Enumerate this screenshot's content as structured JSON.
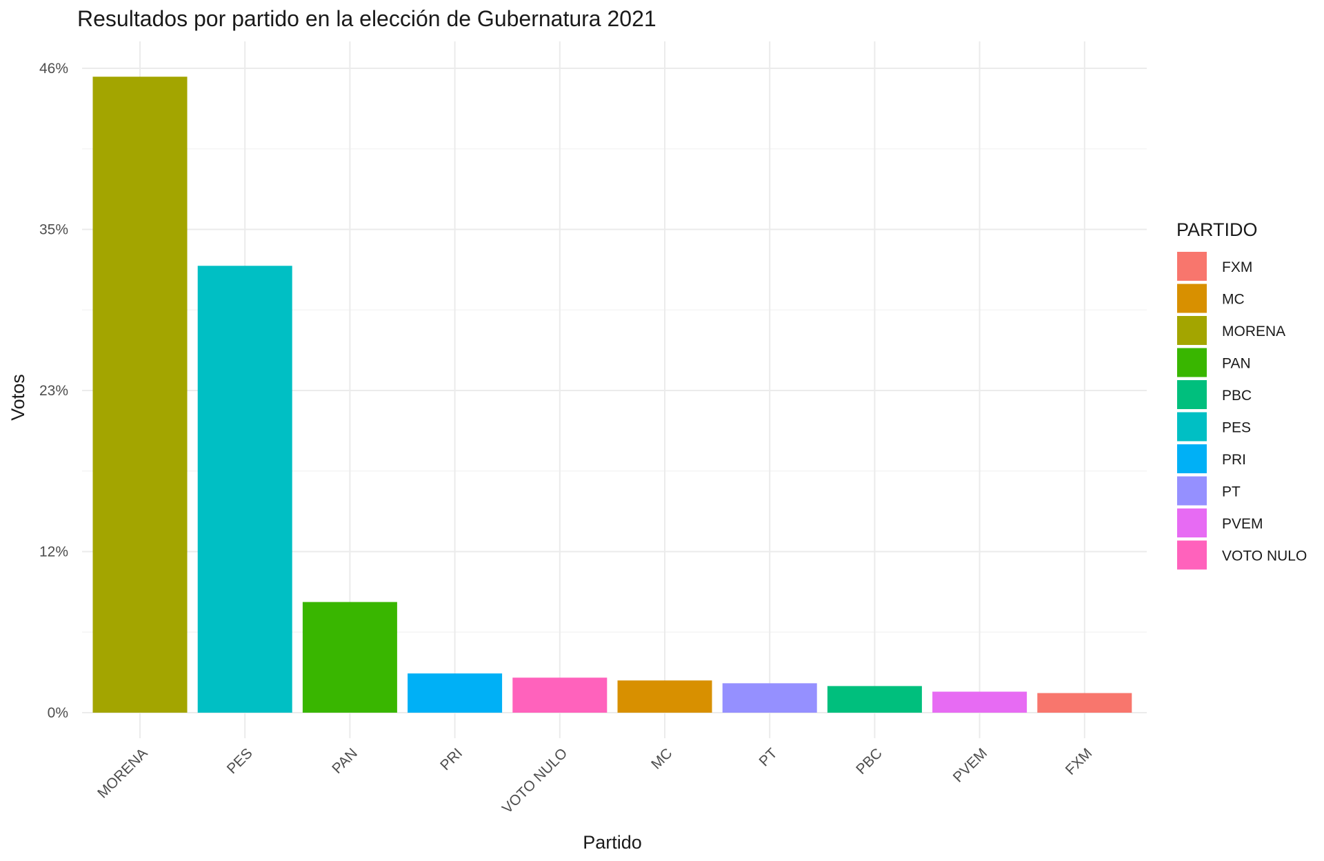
{
  "chart_data": {
    "type": "bar",
    "title": "Resultados por partido en la elección de Gubernatura 2021",
    "xlabel": "Partido",
    "ylabel": "Votos",
    "categories": [
      "MORENA",
      "PES",
      "PAN",
      "PRI",
      "VOTO NULO",
      "MC",
      "PT",
      "PBC",
      "PVEM",
      "FXM"
    ],
    "values": [
      45.4,
      31.9,
      7.9,
      2.8,
      2.5,
      2.3,
      2.1,
      1.9,
      1.5,
      1.4
    ],
    "colors": [
      "#A3A500",
      "#00BFC4",
      "#39B600",
      "#00B0F6",
      "#FF62BC",
      "#D89000",
      "#9590FF",
      "#00BF7D",
      "#E76BF3",
      "#F8766D"
    ],
    "ylim": [
      0,
      46
    ],
    "yticks": [
      0,
      11.5,
      23,
      34.5,
      46
    ],
    "ytick_labels": [
      "0%",
      "12%",
      "23%",
      "35%",
      "46%"
    ],
    "grid": true,
    "legend": {
      "title": "PARTIDO",
      "position": "right",
      "items": [
        {
          "label": "FXM",
          "color": "#F8766D"
        },
        {
          "label": "MC",
          "color": "#D89000"
        },
        {
          "label": "MORENA",
          "color": "#A3A500"
        },
        {
          "label": "PAN",
          "color": "#39B600"
        },
        {
          "label": "PBC",
          "color": "#00BF7D"
        },
        {
          "label": "PES",
          "color": "#00BFC4"
        },
        {
          "label": "PRI",
          "color": "#00B0F6"
        },
        {
          "label": "PT",
          "color": "#9590FF"
        },
        {
          "label": "PVEM",
          "color": "#E76BF3"
        },
        {
          "label": "VOTO NULO",
          "color": "#FF62BC"
        }
      ]
    }
  }
}
